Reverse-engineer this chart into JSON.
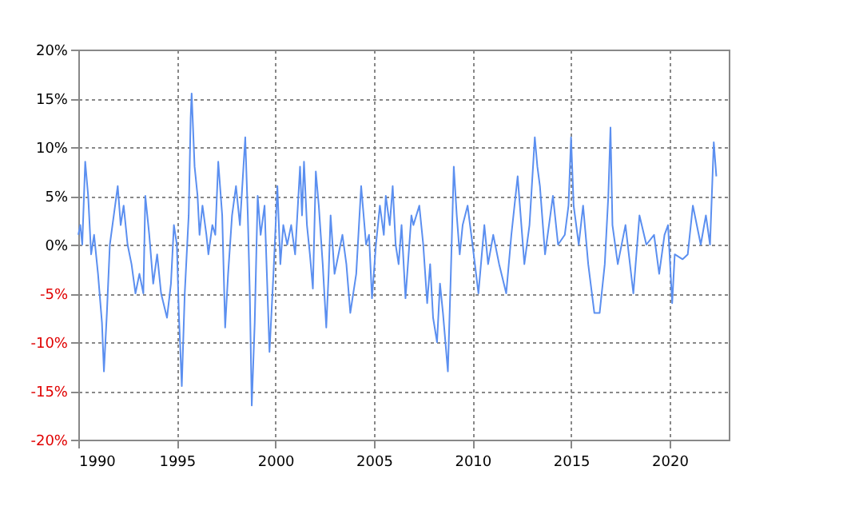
{
  "chart_data": {
    "type": "line",
    "x": [
      1990.0,
      1990.1,
      1990.2,
      1990.35,
      1990.5,
      1990.65,
      1990.8,
      1991.0,
      1991.2,
      1991.3,
      1991.45,
      1991.6,
      1991.8,
      1992.0,
      1992.15,
      1992.3,
      1992.5,
      1992.7,
      1992.9,
      1993.1,
      1993.3,
      1993.4,
      1993.6,
      1993.8,
      1994.0,
      1994.2,
      1994.5,
      1994.7,
      1994.85,
      1995.0,
      1995.1,
      1995.25,
      1995.4,
      1995.6,
      1995.7,
      1995.75,
      1995.9,
      1996.05,
      1996.15,
      1996.3,
      1996.5,
      1996.6,
      1996.8,
      1996.95,
      1997.1,
      1997.3,
      1997.45,
      1997.6,
      1997.8,
      1998.0,
      1998.2,
      1998.35,
      1998.47,
      1998.6,
      1998.7,
      1998.8,
      1998.95,
      1999.1,
      1999.25,
      1999.45,
      1999.7,
      1999.9,
      2000.1,
      2000.25,
      2000.4,
      2000.6,
      2000.8,
      2001.0,
      2001.25,
      2001.35,
      2001.45,
      2001.6,
      2001.75,
      2001.9,
      2002.05,
      2002.2,
      2002.4,
      2002.58,
      2002.7,
      2002.8,
      2003.0,
      2003.2,
      2003.4,
      2003.6,
      2003.8,
      2004.1,
      2004.35,
      2004.6,
      2004.75,
      2004.9,
      2005.1,
      2005.3,
      2005.5,
      2005.6,
      2005.8,
      2005.95,
      2006.1,
      2006.25,
      2006.4,
      2006.6,
      2006.9,
      2007.0,
      2007.3,
      2007.5,
      2007.7,
      2007.85,
      2008.0,
      2008.2,
      2008.35,
      2008.5,
      2008.75,
      2008.9,
      2009.05,
      2009.2,
      2009.35,
      2009.5,
      2009.75,
      2010.0,
      2010.3,
      2010.6,
      2010.79,
      2011.05,
      2011.35,
      2011.71,
      2011.97,
      2012.29,
      2012.63,
      2012.89,
      2013.16,
      2013.29,
      2013.42,
      2013.68,
      2014.08,
      2014.34,
      2014.68,
      2014.87,
      2015.0,
      2015.13,
      2015.39,
      2015.61,
      2015.87,
      2016.18,
      2016.45,
      2016.71,
      2016.89,
      2017.0,
      2017.1,
      2017.37,
      2017.76,
      2018.16,
      2018.47,
      2018.82,
      2019.21,
      2019.47,
      2019.74,
      2019.92,
      2020.13,
      2020.26,
      2020.66,
      2020.92,
      2021.18,
      2021.58,
      2021.84,
      2022.05,
      2022.24,
      2022.37
    ],
    "series": [
      {
        "color": "#5b8ff0",
        "values": [
          1,
          2,
          0,
          8.5,
          5,
          -1,
          1,
          -3,
          -8,
          -13,
          -7,
          0,
          3,
          6,
          2,
          4,
          0,
          -2,
          -5,
          -3,
          -5,
          5,
          1,
          -4,
          -1,
          -5,
          -7.5,
          -4,
          2,
          0,
          -7,
          -14.5,
          -5,
          3,
          13,
          15.5,
          8,
          5,
          1,
          4,
          1,
          -1,
          2,
          1,
          8.5,
          3,
          -8.5,
          -3,
          3,
          6,
          2,
          7,
          11,
          3,
          -5,
          -16.5,
          -8,
          5,
          1,
          4,
          -11,
          -3,
          6,
          -2,
          2,
          0,
          2,
          -1,
          8,
          3,
          8.5,
          2,
          -1,
          -4.5,
          7.5,
          4,
          -2,
          -8.5,
          -3,
          3,
          -3,
          -1,
          1,
          -2,
          -7,
          -3,
          6,
          0,
          1,
          -5.5,
          0,
          4,
          1,
          5,
          2,
          6,
          0,
          -2,
          2,
          -5.5,
          3,
          2,
          4,
          0,
          -6,
          -2,
          -7.5,
          -10,
          -4,
          -7,
          -13,
          -3,
          8,
          3,
          -1,
          2,
          4,
          0,
          -5,
          2,
          -2,
          1,
          -2,
          -5,
          1,
          7,
          -2,
          2,
          11,
          8,
          6,
          -1,
          5,
          0,
          1,
          4,
          11,
          4,
          0,
          4,
          -2,
          -7,
          -7,
          -2,
          5,
          12,
          2,
          -2,
          2,
          -5,
          3,
          0,
          1,
          -3,
          1,
          2,
          -6,
          -1,
          -1.5,
          -1,
          4,
          0,
          3,
          0,
          10.5,
          7
        ]
      }
    ],
    "xlim": [
      1990,
      2023
    ],
    "xticks": [
      1990,
      1995,
      2000,
      2005,
      2010,
      2015,
      2020
    ],
    "ylim": [
      -20,
      20
    ],
    "yticks": [
      {
        "value": -20,
        "label": "-20%"
      },
      {
        "value": -15,
        "label": "-15%"
      },
      {
        "value": -10,
        "label": "-10%"
      },
      {
        "value": -5,
        "label": "-5%"
      },
      {
        "value": 0,
        "label": "0%"
      },
      {
        "value": 5,
        "label": "5%"
      },
      {
        "value": 10,
        "label": "10%"
      },
      {
        "value": 15,
        "label": "15%"
      },
      {
        "value": 20,
        "label": "20%"
      }
    ],
    "grid": true,
    "line_style": "solid",
    "marker": "none"
  }
}
